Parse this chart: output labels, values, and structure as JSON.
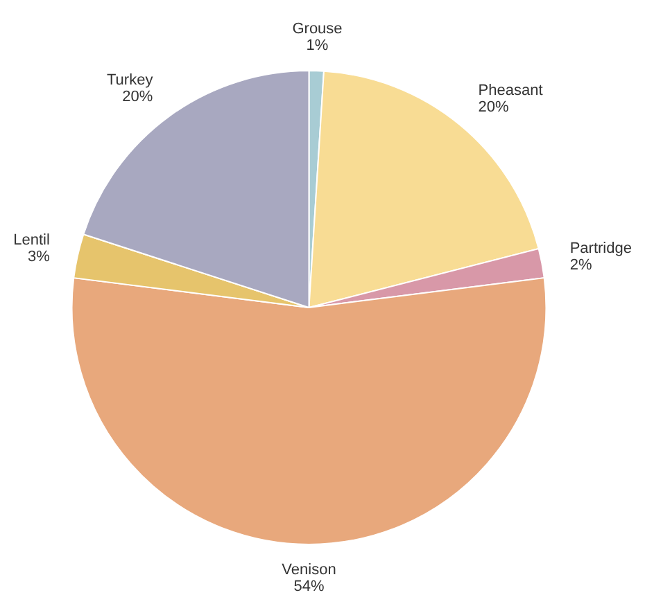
{
  "chart_data": {
    "type": "pie",
    "categories": [
      "Grouse",
      "Pheasant",
      "Partridge",
      "Venison",
      "Lentil",
      "Turkey"
    ],
    "values": [
      1,
      20,
      2,
      54,
      3,
      20
    ],
    "value_labels": [
      "1%",
      "20%",
      "2%",
      "54%",
      "3%",
      "20%"
    ],
    "colors": [
      "#a8ccd4",
      "#f8dc94",
      "#d898a8",
      "#e8a87c",
      "#e6c46c",
      "#a8a8c0"
    ]
  }
}
